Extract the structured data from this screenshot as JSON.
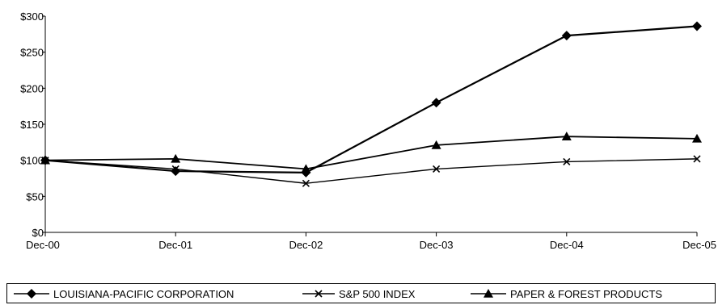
{
  "chart_data": {
    "type": "line",
    "categories": [
      "Dec-00",
      "Dec-01",
      "Dec-02",
      "Dec-03",
      "Dec-04",
      "Dec-05"
    ],
    "y_ticks": [
      "$0",
      "$50",
      "$100",
      "$150",
      "$200",
      "$250",
      "$300"
    ],
    "ylim": [
      0,
      300
    ],
    "grid": false,
    "legend_position": "bottom",
    "series": [
      {
        "name": "LOUISIANA-PACIFIC CORPORATION",
        "marker": "diamond",
        "values": [
          100,
          85,
          83,
          180,
          273,
          286
        ]
      },
      {
        "name": "S&P 500 INDEX",
        "marker": "x",
        "values": [
          100,
          88,
          68,
          88,
          98,
          102
        ]
      },
      {
        "name": "PAPER & FOREST PRODUCTS",
        "marker": "triangle",
        "values": [
          100,
          102,
          88,
          121,
          133,
          130
        ]
      }
    ]
  }
}
